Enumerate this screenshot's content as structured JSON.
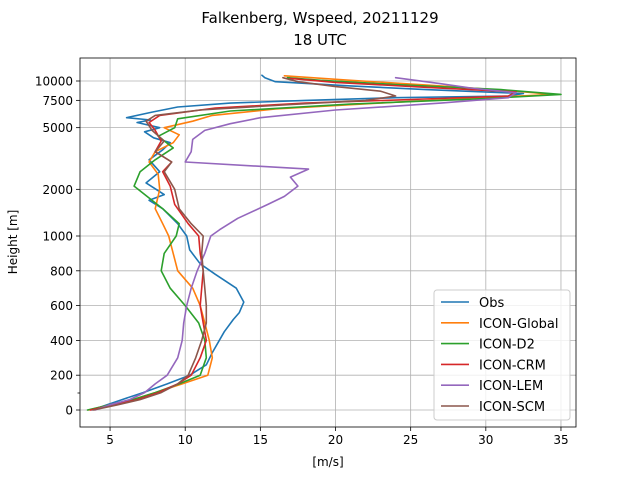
{
  "chart_data": {
    "type": "line",
    "title": "Falkenberg, Wspeed, 20211129",
    "subtitle": "18 UTC",
    "xlabel": "[m/s]",
    "ylabel": "Height [m]",
    "xlim": [
      3.0,
      36.0
    ],
    "ylim": [
      -100,
      11500
    ],
    "x_ticks": [
      5,
      10,
      15,
      20,
      25,
      30,
      35
    ],
    "y_ticks": [
      0,
      200,
      400,
      600,
      800,
      1000,
      2000,
      5000,
      7500,
      10000
    ],
    "y_scale": "piecewise: linear 0-1000 m, log above 1000 m",
    "grid": true,
    "legend_position": "lower right",
    "series": [
      {
        "name": "Obs",
        "color": "#1f77b4",
        "points": [
          [
            3.8,
            0
          ],
          [
            4.8,
            30
          ],
          [
            5.8,
            60
          ],
          [
            7.2,
            100
          ],
          [
            8.8,
            150
          ],
          [
            10.3,
            200
          ],
          [
            11.4,
            260
          ],
          [
            11.8,
            330
          ],
          [
            12.6,
            450
          ],
          [
            13.2,
            520
          ],
          [
            13.6,
            560
          ],
          [
            13.9,
            620
          ],
          [
            13.4,
            700
          ],
          [
            12.0,
            780
          ],
          [
            11.0,
            840
          ],
          [
            10.3,
            920
          ],
          [
            10.1,
            1000
          ],
          [
            9.5,
            1200
          ],
          [
            8.5,
            1500
          ],
          [
            7.6,
            1700
          ],
          [
            8.6,
            1850
          ],
          [
            7.4,
            2200
          ],
          [
            8.3,
            2600
          ],
          [
            7.6,
            3100
          ],
          [
            8.5,
            3600
          ],
          [
            9.0,
            4000
          ],
          [
            7.9,
            4300
          ],
          [
            7.3,
            4700
          ],
          [
            8.3,
            5000
          ],
          [
            6.8,
            5400
          ],
          [
            7.7,
            5600
          ],
          [
            6.1,
            5800
          ],
          [
            7.8,
            6300
          ],
          [
            9.5,
            6800
          ],
          [
            13.0,
            7200
          ],
          [
            18.0,
            7500
          ],
          [
            24.0,
            7800
          ],
          [
            31.5,
            8000
          ],
          [
            32.5,
            8300
          ],
          [
            26.0,
            8800
          ],
          [
            21.0,
            9300
          ],
          [
            16.0,
            9900
          ],
          [
            15.3,
            10500
          ],
          [
            15.1,
            10900
          ]
        ]
      },
      {
        "name": "ICON-Global",
        "color": "#ff7f0e",
        "points": [
          [
            3.6,
            0
          ],
          [
            5.0,
            30
          ],
          [
            6.5,
            60
          ],
          [
            8.0,
            100
          ],
          [
            9.8,
            150
          ],
          [
            11.5,
            200
          ],
          [
            11.8,
            300
          ],
          [
            11.6,
            400
          ],
          [
            11.3,
            500
          ],
          [
            11.0,
            600
          ],
          [
            10.5,
            700
          ],
          [
            9.5,
            800
          ],
          [
            9.2,
            900
          ],
          [
            8.9,
            1000
          ],
          [
            8.5,
            1200
          ],
          [
            8.0,
            1500
          ],
          [
            8.3,
            2000
          ],
          [
            8.2,
            2500
          ],
          [
            7.6,
            3000
          ],
          [
            8.0,
            3500
          ],
          [
            9.2,
            4000
          ],
          [
            9.6,
            4500
          ],
          [
            8.6,
            5000
          ],
          [
            10.5,
            5500
          ],
          [
            11.8,
            6000
          ],
          [
            16.0,
            6600
          ],
          [
            24.0,
            7300
          ],
          [
            31.0,
            7900
          ],
          [
            34.5,
            8200
          ],
          [
            32.0,
            8600
          ],
          [
            27.0,
            9300
          ],
          [
            21.0,
            10100
          ],
          [
            16.6,
            10800
          ]
        ]
      },
      {
        "name": "ICON-D2",
        "color": "#2ca02c",
        "points": [
          [
            3.5,
            0
          ],
          [
            5.0,
            30
          ],
          [
            6.5,
            60
          ],
          [
            8.0,
            100
          ],
          [
            9.6,
            150
          ],
          [
            11.0,
            200
          ],
          [
            11.4,
            300
          ],
          [
            11.3,
            400
          ],
          [
            10.9,
            500
          ],
          [
            10.0,
            600
          ],
          [
            9.0,
            700
          ],
          [
            8.4,
            800
          ],
          [
            8.6,
            900
          ],
          [
            9.4,
            1000
          ],
          [
            9.6,
            1200
          ],
          [
            8.5,
            1500
          ],
          [
            6.6,
            2100
          ],
          [
            7.0,
            2600
          ],
          [
            8.0,
            3100
          ],
          [
            9.2,
            3700
          ],
          [
            8.2,
            4400
          ],
          [
            9.3,
            5000
          ],
          [
            9.5,
            5700
          ],
          [
            13.0,
            6400
          ],
          [
            21.0,
            7100
          ],
          [
            30.0,
            7700
          ],
          [
            35.0,
            8200
          ],
          [
            31.0,
            8800
          ],
          [
            24.0,
            9500
          ],
          [
            19.0,
            10100
          ],
          [
            16.8,
            10500
          ]
        ]
      },
      {
        "name": "ICON-CRM",
        "color": "#d62728",
        "points": [
          [
            3.7,
            0
          ],
          [
            5.2,
            30
          ],
          [
            6.8,
            60
          ],
          [
            8.2,
            100
          ],
          [
            9.5,
            150
          ],
          [
            10.4,
            200
          ],
          [
            11.0,
            300
          ],
          [
            11.4,
            400
          ],
          [
            11.2,
            500
          ],
          [
            11.0,
            600
          ],
          [
            11.1,
            700
          ],
          [
            11.2,
            800
          ],
          [
            11.0,
            900
          ],
          [
            10.9,
            1000
          ],
          [
            10.2,
            1200
          ],
          [
            9.3,
            1600
          ],
          [
            9.0,
            2100
          ],
          [
            8.5,
            2600
          ],
          [
            9.1,
            3000
          ],
          [
            8.0,
            3500
          ],
          [
            8.4,
            4100
          ],
          [
            8.0,
            4800
          ],
          [
            7.6,
            5400
          ],
          [
            8.3,
            6000
          ],
          [
            12.0,
            6700
          ],
          [
            18.0,
            7200
          ],
          [
            25.0,
            7600
          ],
          [
            31.5,
            8000
          ],
          [
            32.0,
            8500
          ],
          [
            26.0,
            9100
          ],
          [
            20.0,
            9800
          ],
          [
            17.0,
            10400
          ]
        ]
      },
      {
        "name": "ICON-LEM",
        "color": "#9467bd",
        "points": [
          [
            4.0,
            0
          ],
          [
            5.0,
            30
          ],
          [
            6.3,
            60
          ],
          [
            7.3,
            100
          ],
          [
            8.0,
            150
          ],
          [
            8.8,
            200
          ],
          [
            9.5,
            300
          ],
          [
            9.8,
            400
          ],
          [
            9.9,
            500
          ],
          [
            10.1,
            600
          ],
          [
            10.4,
            700
          ],
          [
            10.8,
            800
          ],
          [
            11.3,
            900
          ],
          [
            11.7,
            1000
          ],
          [
            12.3,
            1100
          ],
          [
            13.5,
            1300
          ],
          [
            15.5,
            1600
          ],
          [
            16.6,
            1800
          ],
          [
            17.5,
            2100
          ],
          [
            17.0,
            2400
          ],
          [
            18.2,
            2700
          ],
          [
            10.0,
            3000
          ],
          [
            10.4,
            3500
          ],
          [
            10.5,
            4200
          ],
          [
            11.3,
            4800
          ],
          [
            13.0,
            5300
          ],
          [
            15.0,
            5800
          ],
          [
            20.0,
            6500
          ],
          [
            27.0,
            7200
          ],
          [
            31.5,
            7800
          ],
          [
            32.0,
            8400
          ],
          [
            29.0,
            9000
          ],
          [
            27.0,
            9600
          ],
          [
            24.0,
            10500
          ]
        ]
      },
      {
        "name": "ICON-SCM",
        "color": "#8c564b",
        "points": [
          [
            3.9,
            0
          ],
          [
            5.5,
            30
          ],
          [
            7.0,
            60
          ],
          [
            8.4,
            100
          ],
          [
            9.5,
            150
          ],
          [
            10.2,
            200
          ],
          [
            10.7,
            300
          ],
          [
            11.1,
            400
          ],
          [
            11.4,
            500
          ],
          [
            11.4,
            600
          ],
          [
            11.3,
            700
          ],
          [
            11.2,
            800
          ],
          [
            11.1,
            900
          ],
          [
            11.2,
            1000
          ],
          [
            10.4,
            1200
          ],
          [
            9.6,
            1500
          ],
          [
            9.3,
            2000
          ],
          [
            8.6,
            2600
          ],
          [
            9.1,
            3000
          ],
          [
            8.0,
            3500
          ],
          [
            8.6,
            4100
          ],
          [
            7.8,
            4800
          ],
          [
            7.4,
            5500
          ],
          [
            8.0,
            6000
          ],
          [
            11.0,
            6500
          ],
          [
            16.5,
            7000
          ],
          [
            22.0,
            7500
          ],
          [
            24.0,
            8000
          ],
          [
            23.0,
            8600
          ],
          [
            20.0,
            9200
          ],
          [
            17.5,
            9900
          ],
          [
            16.5,
            10500
          ]
        ]
      }
    ]
  }
}
